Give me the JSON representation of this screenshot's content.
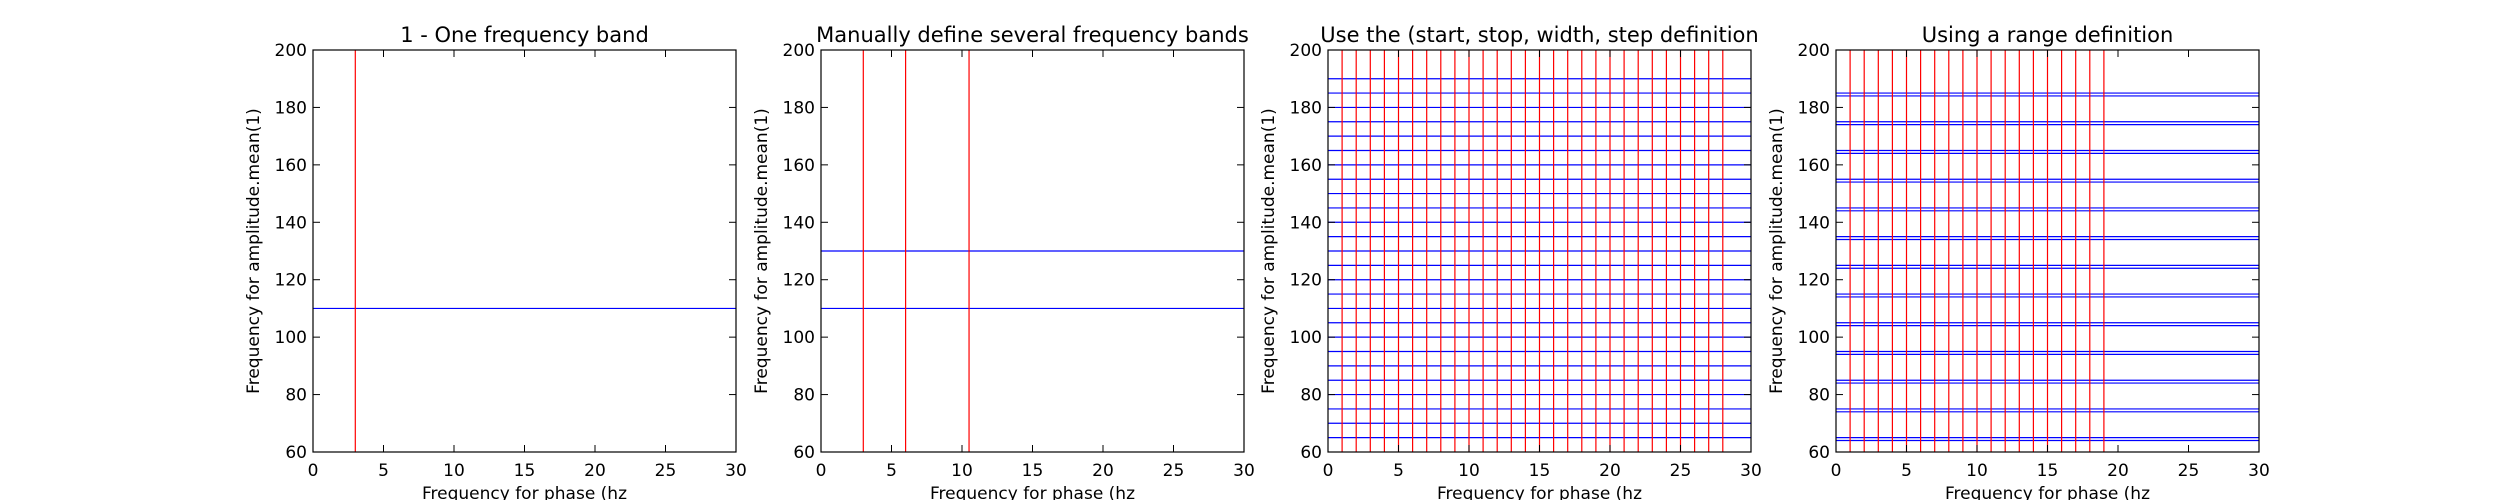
{
  "chart_data": [
    {
      "type": "line",
      "title": "1 - One frequency band",
      "xlabel": "Frequency for phase (hz",
      "ylabel": "Frequency for amplitude.mean(1)",
      "xlim": [
        0,
        30
      ],
      "ylim": [
        60,
        200
      ],
      "xticks": [
        0,
        5,
        10,
        15,
        20,
        25,
        30
      ],
      "yticks": [
        60,
        80,
        100,
        120,
        140,
        160,
        180,
        200
      ],
      "grid": false,
      "vlines": [
        3
      ],
      "hlines": [
        110
      ],
      "vline_color": "#ff0000",
      "hline_color": "#0000ff"
    },
    {
      "type": "line",
      "title": "Manually define several frequency bands",
      "xlabel": "Frequency for phase (hz",
      "ylabel": "Frequency for amplitude.mean(1)",
      "xlim": [
        0,
        30
      ],
      "ylim": [
        60,
        200
      ],
      "xticks": [
        0,
        5,
        10,
        15,
        20,
        25,
        30
      ],
      "yticks": [
        60,
        80,
        100,
        120,
        140,
        160,
        180,
        200
      ],
      "grid": false,
      "vlines": [
        3,
        6,
        10.5
      ],
      "hlines": [
        110,
        130
      ],
      "vline_color": "#ff0000",
      "hline_color": "#0000ff"
    },
    {
      "type": "line",
      "title": "Use the (start, stop, width, step definition",
      "xlabel": "Frequency for phase (hz",
      "ylabel": "Frequency for amplitude.mean(1)",
      "xlim": [
        0,
        30
      ],
      "ylim": [
        60,
        200
      ],
      "xticks": [
        0,
        5,
        10,
        15,
        20,
        25,
        30
      ],
      "yticks": [
        60,
        80,
        100,
        120,
        140,
        160,
        180,
        200
      ],
      "grid": false,
      "vlines": [
        1,
        2,
        3,
        4,
        5,
        6,
        7,
        8,
        9,
        10,
        11,
        12,
        13,
        14,
        15,
        16,
        17,
        18,
        19,
        20,
        21,
        22,
        23,
        24,
        25,
        26,
        27,
        28
      ],
      "hlines": [
        65,
        70,
        75,
        80,
        85,
        90,
        95,
        100,
        105,
        110,
        115,
        120,
        125,
        130,
        135,
        140,
        145,
        150,
        155,
        160,
        165,
        170,
        175,
        180,
        185,
        190
      ],
      "vline_color": "#ff0000",
      "hline_color": "#0000ff"
    },
    {
      "type": "line",
      "title": "Using a range definition",
      "xlabel": "Frequency for phase (hz",
      "ylabel": "Frequency for amplitude.mean(1)",
      "xlim": [
        0,
        30
      ],
      "ylim": [
        60,
        200
      ],
      "xticks": [
        0,
        5,
        10,
        15,
        20,
        25,
        30
      ],
      "yticks": [
        60,
        80,
        100,
        120,
        140,
        160,
        180,
        200
      ],
      "grid": false,
      "vlines": [
        1,
        2,
        3,
        4,
        5,
        6,
        7,
        8,
        9,
        10,
        11,
        12,
        13,
        14,
        15,
        16,
        17,
        18,
        19
      ],
      "hlines": [
        64,
        65,
        74,
        75,
        84,
        85,
        94,
        95,
        104,
        105,
        114,
        115,
        124,
        125,
        134,
        135,
        144,
        145,
        154,
        155,
        164,
        165,
        174,
        175,
        184,
        185
      ],
      "vline_color": "#ff0000",
      "hline_color": "#0000ff"
    }
  ]
}
